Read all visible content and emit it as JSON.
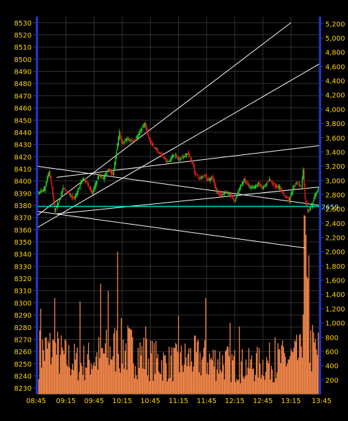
{
  "chart_data": {
    "type": "candlestick-volume",
    "background": "#000000",
    "colors": {
      "axis": "#2233cc",
      "label": "#ffd700",
      "up": "#22dd22",
      "down": "#ee2222",
      "volume": "#f4874b",
      "trendline": "#ffffff",
      "marker_line": "#00e5ee",
      "marker_text": "#a8f0ff"
    },
    "price_axis": {
      "min": 8225,
      "max": 8535,
      "ticks": [
        8230,
        8240,
        8250,
        8260,
        8270,
        8280,
        8290,
        8300,
        8310,
        8320,
        8330,
        8340,
        8350,
        8360,
        8370,
        8380,
        8390,
        8400,
        8410,
        8420,
        8430,
        8440,
        8450,
        8460,
        8470,
        8480,
        8490,
        8500,
        8510,
        8520,
        8530
      ]
    },
    "volume_axis": {
      "min": 0,
      "max": 5300,
      "ticks": [
        "200",
        "400",
        "600",
        "800",
        "1,000",
        "1,200",
        "1,400",
        "1,600",
        "1,800",
        "2,000",
        "2,200",
        "2,400",
        "2,600",
        "2,800",
        "3,000",
        "3,200",
        "3,400",
        "3,600",
        "3,800",
        "4,000",
        "4,200",
        "4,400",
        "4,600",
        "4,800",
        "5,000",
        "5,200"
      ]
    },
    "time_axis": {
      "start": "08:45",
      "end": "13:45",
      "labels": [
        "08:45",
        "09:15",
        "09:45",
        "10:15",
        "10:45",
        "11:15",
        "11:45",
        "12:15",
        "12:45",
        "13:15",
        "13:45"
      ]
    },
    "marker": {
      "value": 8379,
      "label": "2659"
    },
    "price_path": [
      [
        "08:45",
        8390
      ],
      [
        "08:52",
        8393
      ],
      [
        "08:57",
        8408
      ],
      [
        "09:00",
        8395
      ],
      [
        "09:03",
        8375
      ],
      [
        "09:08",
        8385
      ],
      [
        "09:12",
        8394
      ],
      [
        "09:18",
        8390
      ],
      [
        "09:24",
        8385
      ],
      [
        "09:28",
        8393
      ],
      [
        "09:33",
        8402
      ],
      [
        "09:38",
        8398
      ],
      [
        "09:43",
        8390
      ],
      [
        "09:50",
        8405
      ],
      [
        "09:55",
        8402
      ],
      [
        "10:00",
        8410
      ],
      [
        "10:05",
        8405
      ],
      [
        "10:08",
        8420
      ],
      [
        "10:12",
        8440
      ],
      [
        "10:15",
        8430
      ],
      [
        "10:20",
        8435
      ],
      [
        "10:25",
        8433
      ],
      [
        "10:30",
        8435
      ],
      [
        "10:35",
        8442
      ],
      [
        "10:39",
        8447
      ],
      [
        "10:43",
        8436
      ],
      [
        "10:48",
        8428
      ],
      [
        "10:53",
        8425
      ],
      [
        "10:58",
        8420
      ],
      [
        "11:03",
        8415
      ],
      [
        "11:06",
        8417
      ],
      [
        "11:10",
        8422
      ],
      [
        "11:15",
        8418
      ],
      [
        "11:20",
        8420
      ],
      [
        "11:25",
        8423
      ],
      [
        "11:30",
        8415
      ],
      [
        "11:33",
        8405
      ],
      [
        "11:38",
        8402
      ],
      [
        "11:43",
        8405
      ],
      [
        "11:47",
        8400
      ],
      [
        "11:51",
        8404
      ],
      [
        "11:55",
        8392
      ],
      [
        "12:00",
        8388
      ],
      [
        "12:05",
        8391
      ],
      [
        "12:10",
        8389
      ],
      [
        "12:15",
        8383
      ],
      [
        "12:20",
        8394
      ],
      [
        "12:25",
        8401
      ],
      [
        "12:30",
        8395
      ],
      [
        "12:35",
        8394
      ],
      [
        "12:40",
        8398
      ],
      [
        "12:45",
        8394
      ],
      [
        "12:52",
        8401
      ],
      [
        "12:58",
        8396
      ],
      [
        "13:03",
        8395
      ],
      [
        "13:06",
        8390
      ],
      [
        "13:09",
        8387
      ],
      [
        "13:13",
        8384
      ],
      [
        "13:18",
        8396
      ],
      [
        "13:22",
        8399
      ],
      [
        "13:26",
        8394
      ],
      [
        "13:28",
        8410
      ],
      [
        "13:30",
        8385
      ],
      [
        "13:33",
        8375
      ],
      [
        "13:37",
        8380
      ],
      [
        "13:40",
        8387
      ],
      [
        "13:45",
        8396
      ]
    ],
    "volume_path": [
      [
        "08:45",
        700
      ],
      [
        "09:00",
        750
      ],
      [
        "09:15",
        600
      ],
      [
        "09:30",
        520
      ],
      [
        "09:45",
        600
      ],
      [
        "10:00",
        720
      ],
      [
        "10:15",
        800
      ],
      [
        "10:30",
        700
      ],
      [
        "10:45",
        600
      ],
      [
        "11:00",
        520
      ],
      [
        "11:15",
        540
      ],
      [
        "11:30",
        620
      ],
      [
        "11:45",
        580
      ],
      [
        "12:00",
        560
      ],
      [
        "12:15",
        500
      ],
      [
        "12:30",
        480
      ],
      [
        "12:45",
        520
      ],
      [
        "13:00",
        560
      ],
      [
        "13:15",
        600
      ],
      [
        "13:25",
        640
      ],
      [
        "13:30",
        2400
      ],
      [
        "13:35",
        800
      ],
      [
        "13:45",
        700
      ]
    ],
    "volume_spikes": [
      [
        "08:48",
        1200
      ],
      [
        "09:03",
        1350
      ],
      [
        "09:30",
        1300
      ],
      [
        "09:52",
        1550
      ],
      [
        "10:00",
        1450
      ],
      [
        "10:10",
        2000
      ],
      [
        "10:25",
        900
      ],
      [
        "10:40",
        950
      ],
      [
        "11:15",
        1100
      ],
      [
        "11:44",
        1350
      ],
      [
        "12:10",
        1000
      ],
      [
        "12:20",
        950
      ],
      [
        "12:58",
        800
      ],
      [
        "13:32",
        1650
      ],
      [
        "13:34",
        1950
      ]
    ],
    "trendlines": [
      [
        [
          "08:45",
          8372
        ],
        [
          "13:15",
          8530
        ]
      ],
      [
        [
          "08:45",
          8362
        ],
        [
          "13:45",
          8496
        ]
      ],
      [
        [
          "09:05",
          8403
        ],
        [
          "13:45",
          8429
        ]
      ],
      [
        [
          "09:05",
          8373
        ],
        [
          "13:45",
          8395
        ]
      ],
      [
        [
          "08:45",
          8412
        ],
        [
          "13:45",
          8380
        ]
      ],
      [
        [
          "08:45",
          8375
        ],
        [
          "13:30",
          8345
        ]
      ]
    ]
  }
}
